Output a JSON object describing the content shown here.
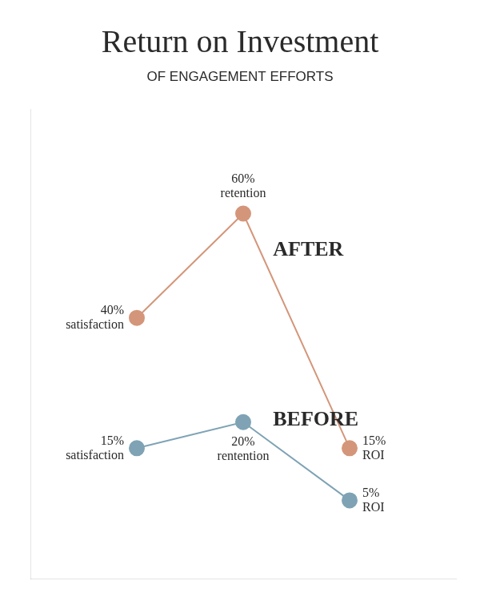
{
  "chart_data": {
    "type": "line",
    "title": "Return on Investment",
    "subtitle": "OF ENGAGEMENT EFFORTS",
    "x": [
      1,
      2,
      3
    ],
    "series": [
      {
        "name": "AFTER",
        "color": "#d4967a",
        "values": [
          40,
          60,
          15
        ],
        "value_labels": [
          "40%\nsatisfaction",
          "60%\nretention",
          "15%\nROI"
        ]
      },
      {
        "name": "BEFORE",
        "color": "#7fa3b5",
        "values": [
          15,
          20,
          5
        ],
        "value_labels": [
          "15%\nsatisfaction",
          "20%\nrentention",
          "5%\nROI"
        ]
      }
    ],
    "xlim": [
      0,
      4
    ],
    "ylim": [
      -10,
      80
    ],
    "grid": false,
    "tick_labels": false,
    "data_labels": true,
    "marker": "circle"
  }
}
